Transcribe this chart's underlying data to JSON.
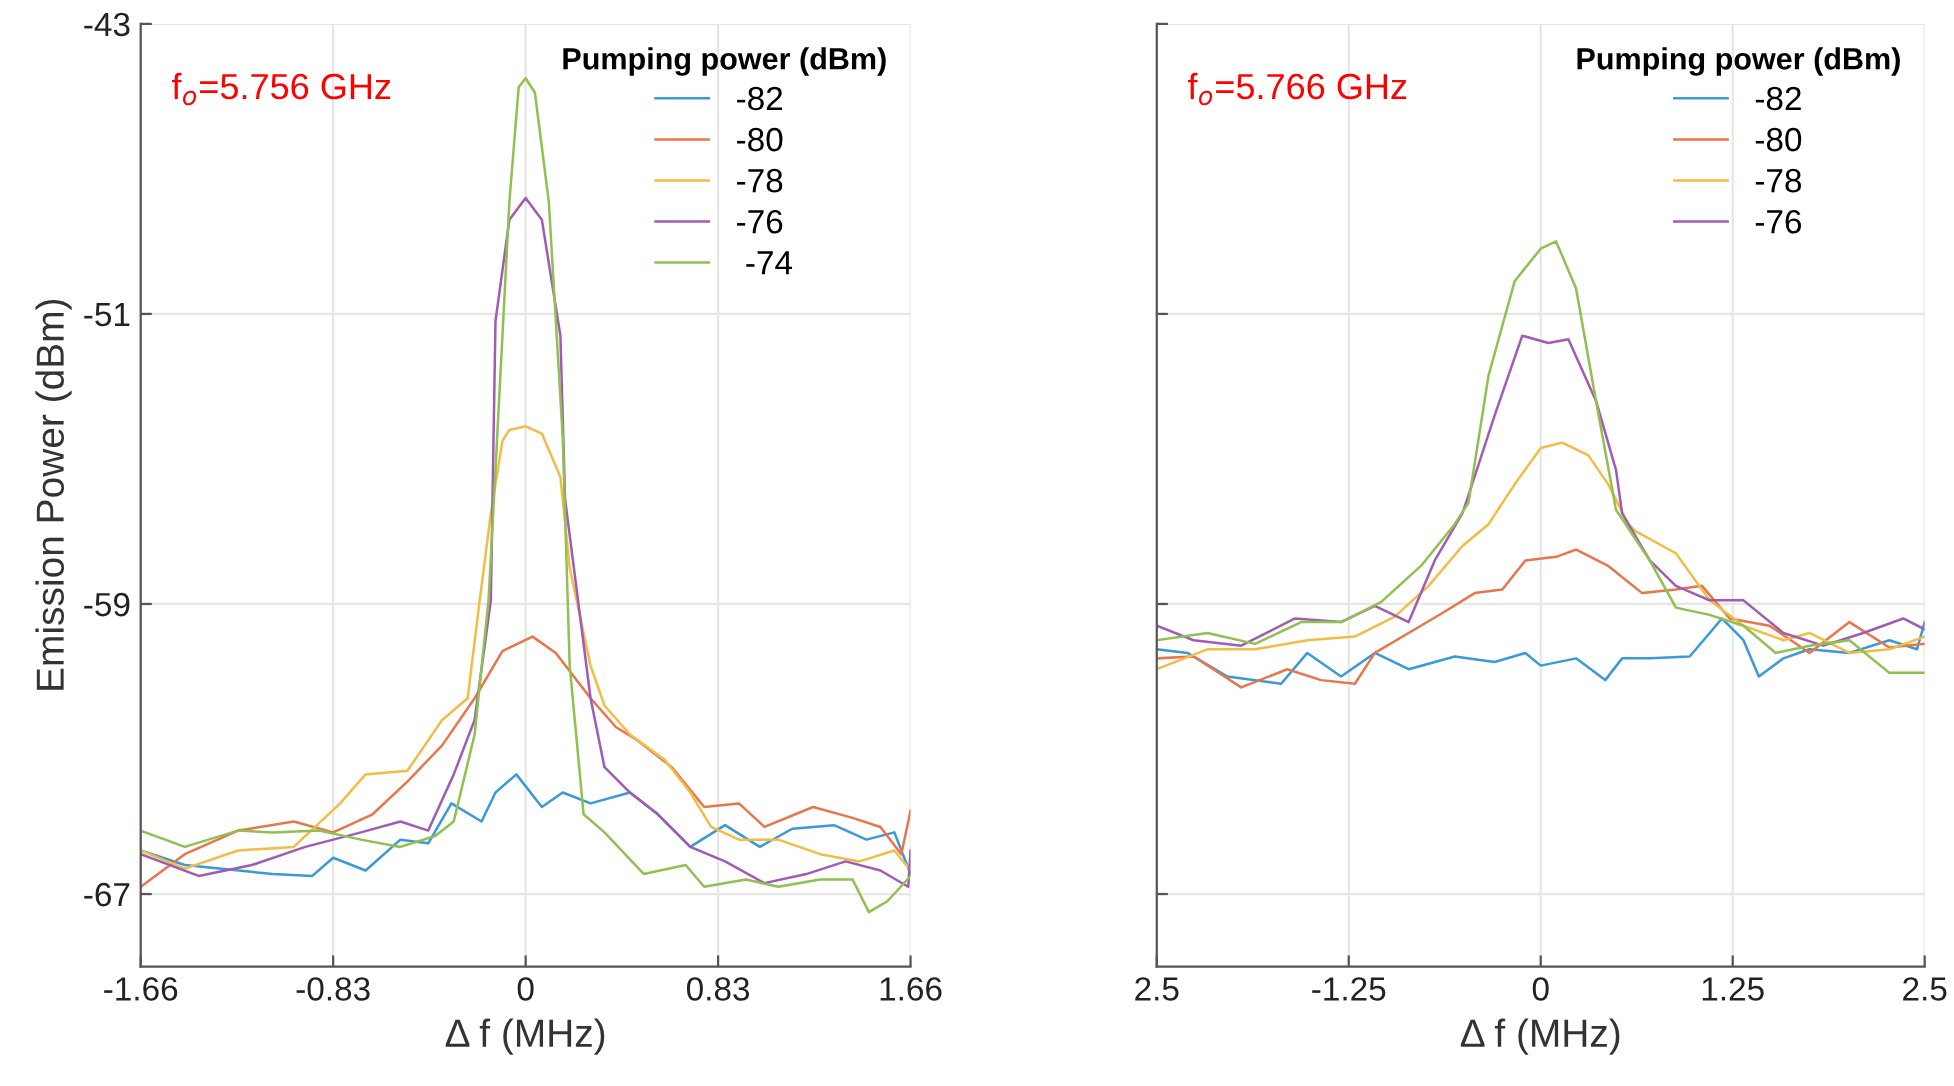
{
  "chart_data": [
    {
      "type": "line",
      "xlabel": "Δ f (MHz)",
      "ylabel": "Emission Power (dBm)",
      "legend_title": "Pumping power (dBm)",
      "legend": "top right",
      "grid": true,
      "annotations": [
        "f$_{o}$=5.756 GHz"
      ],
      "xlim": [
        -1.66,
        1.66
      ],
      "xticks": [
        -1.66,
        -0.83,
        0,
        0.83,
        1.66
      ],
      "ylim": [
        -69,
        -43
      ],
      "yticks": [
        -43,
        -51,
        -59,
        -67
      ],
      "series": [
        {
          "name": "-82",
          "color": "#3a9ad9",
          "x": [
            -1.66,
            -1.47,
            -1.09,
            -0.92,
            -0.83,
            -0.69,
            -0.54,
            -0.42,
            -0.32,
            -0.19,
            -0.13,
            -0.04,
            0.07,
            0.16,
            0.28,
            0.45,
            0.57,
            0.71,
            0.86,
            1.01,
            1.15,
            1.33,
            1.47,
            1.59,
            1.66
          ],
          "values": [
            -65.8,
            -66.2,
            -66.45,
            -66.5,
            -66.0,
            -66.35,
            -65.5,
            -65.6,
            -64.5,
            -65.0,
            -64.2,
            -63.7,
            -64.6,
            -64.2,
            -64.5,
            -64.2,
            -64.8,
            -65.7,
            -65.1,
            -65.7,
            -65.2,
            -65.1,
            -65.5,
            -65.3,
            -66.45
          ]
        },
        {
          "name": "-80",
          "color": "#e8764a",
          "x": [
            -1.66,
            -1.47,
            -1.24,
            -1.0,
            -0.83,
            -0.66,
            -0.51,
            -0.36,
            -0.22,
            -0.1,
            0.03,
            0.13,
            0.28,
            0.39,
            0.48,
            0.63,
            0.77,
            0.92,
            1.03,
            1.24,
            1.41,
            1.53,
            1.62,
            1.66
          ],
          "values": [
            -66.8,
            -65.9,
            -65.25,
            -65.0,
            -65.3,
            -64.8,
            -63.9,
            -62.9,
            -61.6,
            -60.3,
            -59.9,
            -60.35,
            -61.6,
            -62.4,
            -62.75,
            -63.5,
            -64.6,
            -64.5,
            -65.15,
            -64.6,
            -64.9,
            -65.15,
            -65.9,
            -64.7
          ]
        },
        {
          "name": "-78",
          "color": "#f2bd47",
          "x": [
            -1.66,
            -1.47,
            -1.24,
            -1.0,
            -0.8,
            -0.69,
            -0.51,
            -0.36,
            -0.25,
            -0.2,
            -0.15,
            -0.1,
            -0.07,
            0,
            0.07,
            0.15,
            0.19,
            0.28,
            0.34,
            0.45,
            0.6,
            0.71,
            0.8,
            0.92,
            1.09,
            1.27,
            1.44,
            1.59,
            1.66
          ],
          "values": [
            -65.8,
            -66.3,
            -65.8,
            -65.7,
            -64.5,
            -63.7,
            -63.6,
            -62.2,
            -61.6,
            -59.0,
            -56.5,
            -54.5,
            -54.2,
            -54.1,
            -54.3,
            -55.5,
            -58.0,
            -60.7,
            -61.8,
            -62.6,
            -63.3,
            -64.2,
            -65.15,
            -65.5,
            -65.5,
            -65.9,
            -66.1,
            -65.8,
            -66.35
          ]
        },
        {
          "name": "-76",
          "color": "#a05cb5",
          "x": [
            -1.66,
            -1.41,
            -1.18,
            -0.95,
            -0.71,
            -0.54,
            -0.42,
            -0.31,
            -0.22,
            -0.15,
            -0.13,
            -0.07,
            0,
            0.07,
            0.15,
            0.17,
            0.28,
            0.34,
            0.45,
            0.57,
            0.71,
            0.86,
            1.03,
            1.21,
            1.38,
            1.53,
            1.65,
            1.66
          ],
          "values": [
            -65.9,
            -66.5,
            -66.2,
            -65.7,
            -65.3,
            -65.0,
            -65.25,
            -63.7,
            -62.2,
            -58.9,
            -51.2,
            -48.4,
            -47.8,
            -48.4,
            -51.6,
            -56.1,
            -61.6,
            -63.5,
            -64.2,
            -64.8,
            -65.7,
            -66.1,
            -66.7,
            -66.45,
            -66.1,
            -66.35,
            -66.8,
            -65.8
          ]
        },
        {
          "name": " -74",
          "color": "#8fc050",
          "x": [
            -1.66,
            -1.47,
            -1.24,
            -1.09,
            -0.89,
            -0.71,
            -0.54,
            -0.39,
            -0.31,
            -0.22,
            -0.16,
            -0.13,
            -0.07,
            -0.03,
            0,
            0.04,
            0.1,
            0.16,
            0.19,
            0.25,
            0.34,
            0.51,
            0.69,
            0.77,
            0.95,
            1.09,
            1.27,
            1.41,
            1.48,
            1.56,
            1.66
          ],
          "values": [
            -65.25,
            -65.7,
            -65.25,
            -65.3,
            -65.25,
            -65.5,
            -65.7,
            -65.4,
            -65.0,
            -62.6,
            -58.9,
            -55.3,
            -47.9,
            -44.75,
            -44.5,
            -44.9,
            -47.9,
            -54.4,
            -60.7,
            -64.8,
            -65.3,
            -66.45,
            -66.2,
            -66.8,
            -66.6,
            -66.8,
            -66.6,
            -66.6,
            -67.5,
            -67.2,
            -66.5
          ]
        }
      ]
    },
    {
      "type": "line",
      "xlabel": "Δ f (MHz)",
      "legend_title": "Pumping power (dBm)",
      "legend": "top right",
      "grid": true,
      "annotations": [
        "f$_{o}$=5.766 GHz"
      ],
      "tick_labels": "x",
      "xlim": [
        -2.5,
        2.5
      ],
      "xticks": [
        {
          "value": -2.5,
          "label": "2.5"
        },
        -1.25,
        0,
        1.25,
        2.5
      ],
      "ylim": [
        -69,
        -43
      ],
      "yticks": [
        -43,
        -51,
        -59,
        -67
      ],
      "series": [
        {
          "name": "-82",
          "color": "#3a9ad9",
          "x": [
            -2.5,
            -2.3,
            -2.04,
            -1.69,
            -1.52,
            -1.3,
            -1.08,
            -0.86,
            -0.56,
            -0.3,
            -0.1,
            0,
            0.23,
            0.42,
            0.53,
            0.71,
            0.97,
            1.18,
            1.32,
            1.42,
            1.58,
            1.75,
            2.01,
            2.27,
            2.45,
            2.5
          ],
          "values": [
            -60.25,
            -60.35,
            -61.0,
            -61.2,
            -60.35,
            -61.0,
            -60.35,
            -60.8,
            -60.45,
            -60.6,
            -60.35,
            -60.7,
            -60.5,
            -61.1,
            -60.5,
            -60.5,
            -60.45,
            -59.4,
            -60.0,
            -61.0,
            -60.5,
            -60.25,
            -60.35,
            -60.0,
            -60.25,
            -59.5
          ]
        },
        {
          "name": "-80",
          "color": "#e8764a",
          "x": [
            -2.5,
            -2.26,
            -1.95,
            -1.65,
            -1.43,
            -1.21,
            -1.08,
            -0.86,
            -0.64,
            -0.43,
            -0.25,
            -0.1,
            0.1,
            0.23,
            0.44,
            0.66,
            0.88,
            1.05,
            1.23,
            1.49,
            1.75,
            2.01,
            2.27,
            2.5
          ],
          "values": [
            -60.5,
            -60.45,
            -61.3,
            -60.8,
            -61.1,
            -61.2,
            -60.35,
            -59.8,
            -59.25,
            -58.7,
            -58.6,
            -57.8,
            -57.7,
            -57.5,
            -57.95,
            -58.7,
            -58.6,
            -58.5,
            -59.4,
            -59.6,
            -60.35,
            -59.5,
            -60.2,
            -60.1
          ]
        },
        {
          "name": "-78",
          "color": "#f2bd47",
          "x": [
            -2.5,
            -2.17,
            -1.86,
            -1.52,
            -1.21,
            -0.95,
            -0.73,
            -0.51,
            -0.34,
            -0.17,
            0,
            0.14,
            0.31,
            0.44,
            0.57,
            0.62,
            0.88,
            1.1,
            1.32,
            1.58,
            1.75,
            2.01,
            2.27,
            2.5
          ],
          "values": [
            -60.8,
            -60.25,
            -60.25,
            -60.0,
            -59.9,
            -59.35,
            -58.5,
            -57.4,
            -56.8,
            -55.7,
            -54.7,
            -54.55,
            -54.9,
            -55.7,
            -56.8,
            -57.0,
            -57.6,
            -58.9,
            -59.6,
            -60.0,
            -59.8,
            -60.35,
            -60.25,
            -59.9
          ]
        },
        {
          "name": "-76",
          "color": "#a05cb5",
          "x": [
            -2.5,
            -2.26,
            -1.95,
            -1.6,
            -1.3,
            -1.08,
            -0.86,
            -0.69,
            -0.51,
            -0.47,
            -0.3,
            -0.12,
            0.05,
            0.18,
            0.36,
            0.49,
            0.53,
            0.71,
            0.88,
            1.1,
            1.32,
            1.58,
            1.84,
            2.1,
            2.36,
            2.5
          ],
          "values": [
            -59.6,
            -60.0,
            -60.15,
            -59.4,
            -59.5,
            -59.05,
            -59.5,
            -57.8,
            -56.5,
            -56.0,
            -53.8,
            -51.6,
            -51.8,
            -51.7,
            -53.4,
            -55.3,
            -56.5,
            -57.8,
            -58.5,
            -58.9,
            -58.9,
            -59.8,
            -60.15,
            -59.8,
            -59.4,
            -59.7
          ]
        },
        {
          "color": "#8fc050",
          "x": [
            -2.5,
            -2.17,
            -1.86,
            -1.56,
            -1.3,
            -1.04,
            -0.78,
            -0.56,
            -0.47,
            -0.34,
            -0.17,
            0,
            0.1,
            0.23,
            0.36,
            0.49,
            0.71,
            0.88,
            1.1,
            1.32,
            1.53,
            1.75,
            2.01,
            2.27,
            2.5
          ],
          "values": [
            -60.0,
            -59.8,
            -60.1,
            -59.5,
            -59.5,
            -58.95,
            -57.95,
            -56.8,
            -56.2,
            -52.7,
            -50.1,
            -49.2,
            -49.0,
            -50.3,
            -53.4,
            -56.4,
            -57.8,
            -59.1,
            -59.3,
            -59.6,
            -60.35,
            -60.15,
            -60.0,
            -60.9,
            -60.9
          ]
        }
      ]
    }
  ]
}
